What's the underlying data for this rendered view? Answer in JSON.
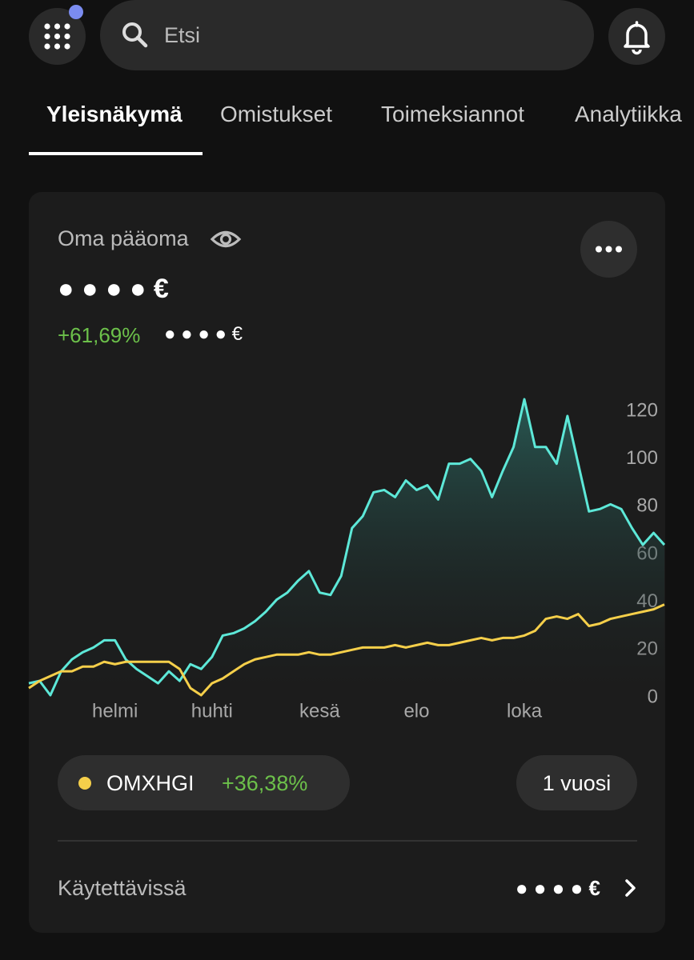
{
  "top_bar": {
    "search_placeholder": "Etsi"
  },
  "tabs": [
    "Yleisnäkymä",
    "Omistukset",
    "Toimeksiannot",
    "Analytiikka"
  ],
  "card": {
    "title": "Oma pääoma",
    "value": "● ● ● ● €",
    "change": "+61,69%",
    "change_value": "● ● ● ● €"
  },
  "chart_data": {
    "type": "line",
    "categories": [
      null,
      null,
      null,
      null,
      null,
      null,
      null,
      null,
      "helmi",
      null,
      null,
      null,
      null,
      null,
      null,
      null,
      null,
      "huhti",
      null,
      null,
      null,
      null,
      null,
      null,
      null,
      null,
      null,
      "kesä",
      null,
      null,
      null,
      null,
      null,
      null,
      null,
      null,
      "elo",
      null,
      null,
      null,
      null,
      null,
      null,
      null,
      null,
      null,
      "loka",
      null,
      null,
      null,
      null,
      null,
      null,
      null,
      null,
      null,
      null,
      null,
      null,
      null
    ],
    "ylim": [
      0,
      120
    ],
    "yticks": [
      0,
      20,
      40,
      60,
      80,
      100,
      120
    ],
    "series": [
      {
        "color": "#5de8d8",
        "values": [
          6,
          7,
          1,
          11,
          16,
          19,
          21,
          24,
          24,
          16,
          12,
          9,
          6,
          11,
          7,
          14,
          12,
          17,
          26,
          27,
          29,
          32,
          36,
          41,
          44,
          49,
          53,
          44,
          43,
          51,
          71,
          76,
          86,
          87,
          84,
          91,
          87,
          89,
          83,
          98,
          98,
          100,
          95,
          84,
          95,
          105,
          125,
          105,
          105,
          98,
          118,
          98,
          78,
          79,
          81,
          79,
          71,
          64,
          69,
          64
        ]
      },
      {
        "name": "OMXHGI",
        "color": "#f5cf4a",
        "values": [
          4,
          7,
          9,
          11,
          11,
          13,
          13,
          15,
          14,
          15,
          15,
          15,
          15,
          15,
          12,
          4,
          1,
          6,
          8,
          11,
          14,
          16,
          17,
          18,
          18,
          18,
          19,
          18,
          18,
          19,
          20,
          21,
          21,
          21,
          22,
          21,
          22,
          23,
          22,
          22,
          23,
          24,
          25,
          24,
          25,
          25,
          26,
          28,
          33,
          34,
          33,
          35,
          30,
          31,
          33,
          34,
          35,
          36,
          37,
          39
        ]
      }
    ]
  },
  "benchmark": {
    "change": "+36,38%"
  },
  "period_button": "1 vuosi",
  "available": {
    "label": "Käytettävissä",
    "value": "● ● ● ● €"
  }
}
